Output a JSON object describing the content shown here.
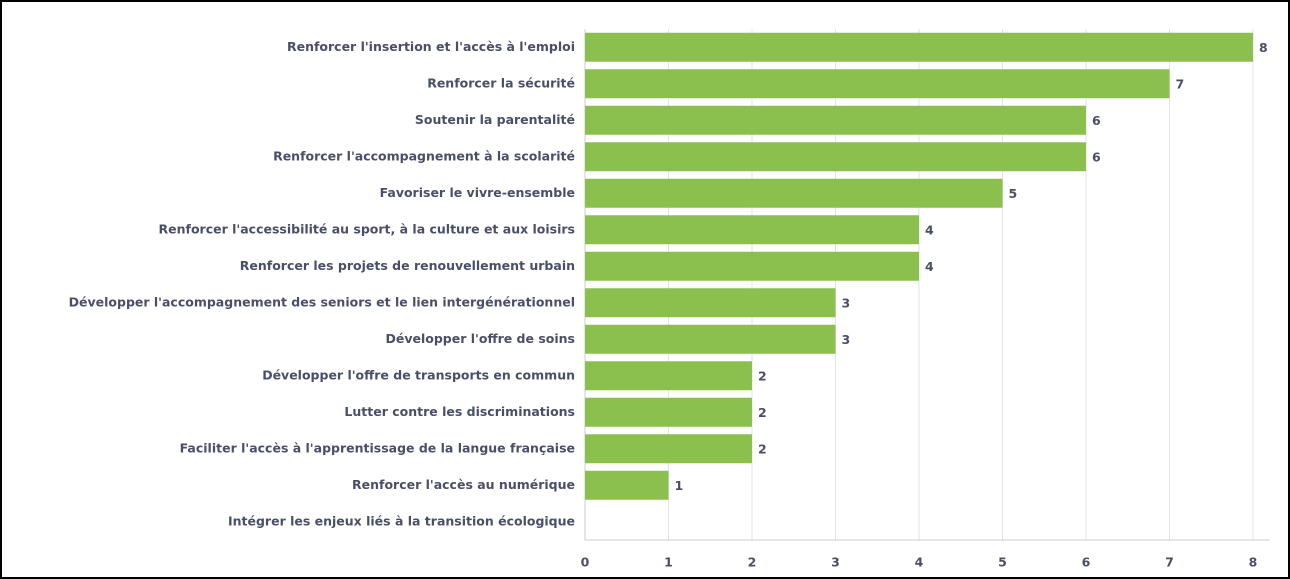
{
  "chart_data": {
    "type": "bar",
    "orientation": "horizontal",
    "categories": [
      "Renforcer l'insertion et l'accès à l'emploi",
      "Renforcer la sécurité",
      "Soutenir la parentalité",
      "Renforcer l'accompagnement à la scolarité",
      "Favoriser le vivre-ensemble",
      "Renforcer l'accessibilité au sport, à la culture et aux loisirs",
      "Renforcer les projets de renouvellement urbain",
      "Développer l'accompagnement des seniors et le lien intergénérationnel",
      "Développer l'offre de soins",
      "Développer l'offre de transports en commun",
      "Lutter contre les discriminations",
      "Faciliter l'accès à l'apprentissage de la langue française",
      "Renforcer l'accès au numérique",
      "Intégrer les enjeux liés à la transition écologique"
    ],
    "values": [
      8,
      7,
      6,
      6,
      5,
      4,
      4,
      3,
      3,
      2,
      2,
      2,
      1,
      0
    ],
    "color": "#8bc04f",
    "xlim": [
      0,
      8.2
    ],
    "xticks": [
      0,
      1,
      2,
      3,
      4,
      5,
      6,
      7,
      8
    ],
    "grid": true
  }
}
